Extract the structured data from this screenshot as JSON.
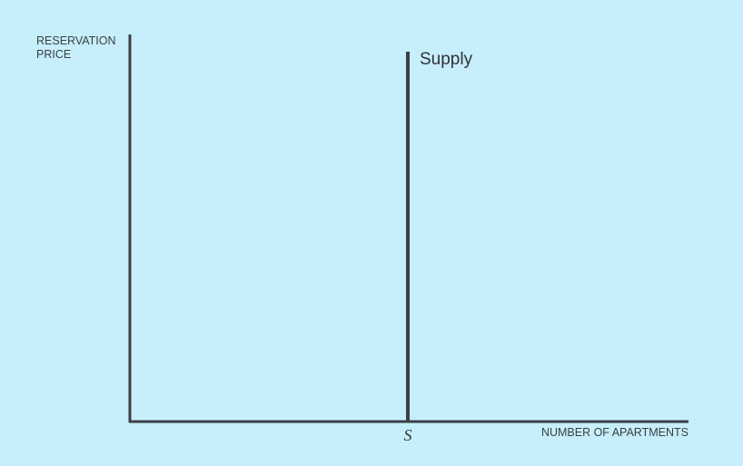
{
  "chart_data": {
    "type": "line",
    "ylabel": [
      "RESERVATION",
      "PRICE"
    ],
    "xlabel": "NUMBER OF APARTMENTS",
    "x_ticks": [
      {
        "value": 1,
        "label": "S"
      }
    ],
    "xlim": [
      0,
      2
    ],
    "ylim": [
      0,
      1
    ],
    "series": [
      {
        "name": "Supply",
        "x": [
          1,
          1
        ],
        "y": [
          0,
          1
        ]
      }
    ],
    "colors": {
      "background": "#c6eefb",
      "axis": "#3a3f44",
      "supply": "#3a3f44"
    }
  }
}
